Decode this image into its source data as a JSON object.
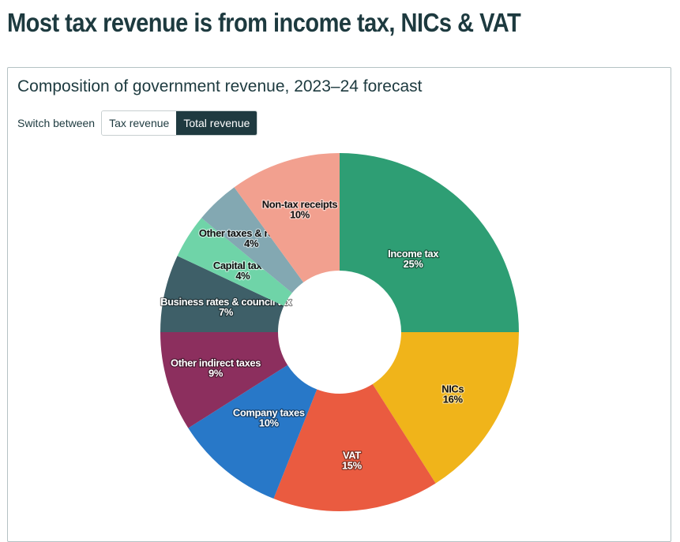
{
  "headline": "Most tax revenue is from income tax, NICs & VAT",
  "chart_title": "Composition of government revenue, 2023–24 forecast",
  "switch": {
    "label": "Switch between",
    "options": [
      "Tax revenue",
      "Total revenue"
    ],
    "selected": "Total revenue"
  },
  "chart_data": {
    "type": "pie",
    "variant": "donut",
    "title": "Composition of government revenue, 2023–24 forecast",
    "unit": "%",
    "slices": [
      {
        "label": "Income tax",
        "value": 25,
        "display": "25%",
        "color": "#2e9e74",
        "text": "light"
      },
      {
        "label": "NICs",
        "value": 16,
        "display": "16%",
        "color": "#f0b41a",
        "text": "dark"
      },
      {
        "label": "VAT",
        "value": 15,
        "display": "15%",
        "color": "#ea5b40",
        "text": "light"
      },
      {
        "label": "Company taxes",
        "value": 10,
        "display": "10%",
        "color": "#2878c8",
        "text": "light"
      },
      {
        "label": "Other indirect taxes",
        "value": 9,
        "display": "9%",
        "color": "#8c2f5e",
        "text": "light"
      },
      {
        "label": "Business rates & council tax",
        "value": 7,
        "display": "7%",
        "color": "#3e5f68",
        "text": "light"
      },
      {
        "label": "Capital taxes",
        "value": 4,
        "display": "4%",
        "color": "#6fd4a8",
        "text": "dark"
      },
      {
        "label": "Other taxes & royalties",
        "value": 4,
        "display": "4%",
        "color": "#83a8b2",
        "text": "dark"
      },
      {
        "label": "Non-tax receipts",
        "value": 10,
        "display": "10%",
        "color": "#f2a08f",
        "text": "dark"
      }
    ]
  }
}
